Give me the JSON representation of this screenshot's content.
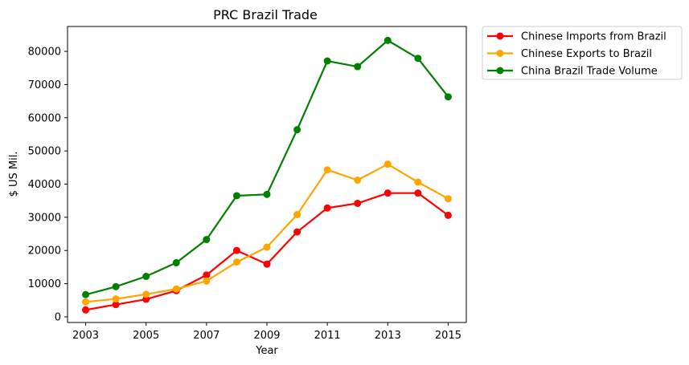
{
  "chart_data": {
    "type": "line",
    "title": "PRC Brazil Trade",
    "xlabel": "Year",
    "ylabel": "$ US Mil.",
    "x": [
      2003,
      2004,
      2005,
      2006,
      2007,
      2008,
      2009,
      2010,
      2011,
      2012,
      2013,
      2014,
      2015
    ],
    "xticks": [
      "2003",
      "2005",
      "2007",
      "2009",
      "2011",
      "2013",
      "2015"
    ],
    "yticks": [
      "0",
      "10000",
      "20000",
      "30000",
      "40000",
      "50000",
      "60000",
      "70000",
      "80000"
    ],
    "xlim": [
      2002.4,
      2015.6
    ],
    "ylim": [
      -1700,
      87500
    ],
    "grid": false,
    "legend_position": "outside-top-right",
    "series": [
      {
        "name": "Chinese Imports from Brazil",
        "color": "#ff0000",
        "values": [
          2100,
          3700,
          5300,
          7900,
          12600,
          20000,
          15900,
          25600,
          32800,
          34200,
          37300,
          37300,
          30600
        ]
      },
      {
        "name": "Chinese Exports to Brazil",
        "color": "#ffa500",
        "values": [
          4500,
          5400,
          6800,
          8400,
          10800,
          16500,
          21000,
          30800,
          44300,
          41200,
          46000,
          40600,
          35600
        ]
      },
      {
        "name": "China Brazil Trade Volume",
        "color": "#008000",
        "values": [
          6700,
          9100,
          12200,
          16300,
          23300,
          36500,
          36900,
          56400,
          77100,
          75400,
          83300,
          77900,
          66300
        ]
      }
    ]
  }
}
